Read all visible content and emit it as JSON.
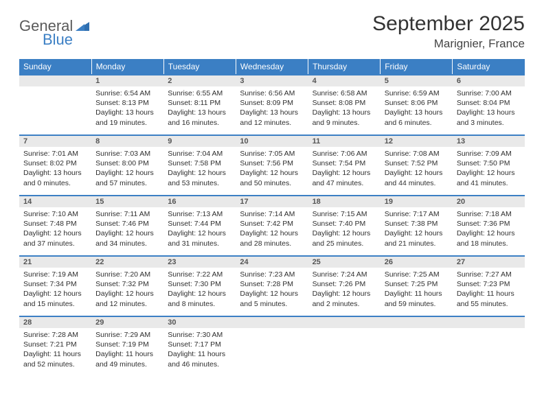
{
  "brand": {
    "name1": "General",
    "name2": "Blue",
    "color1": "#5a5a5a",
    "color2": "#3b7fc4"
  },
  "title": "September 2025",
  "location": "Marignier, France",
  "style": {
    "header_bg": "#3b7fc4",
    "header_fg": "#ffffff",
    "daynum_bg": "#e9e9e9",
    "day_border": "#3b7fc4",
    "text_color": "#333333",
    "title_fontsize": 30,
    "location_fontsize": 17,
    "weekday_fontsize": 12,
    "cell_fontsize": 10.5
  },
  "weekdays": [
    "Sunday",
    "Monday",
    "Tuesday",
    "Wednesday",
    "Thursday",
    "Friday",
    "Saturday"
  ],
  "weeks": [
    [
      null,
      {
        "n": "1",
        "sr": "Sunrise: 6:54 AM",
        "ss": "Sunset: 8:13 PM",
        "d1": "Daylight: 13 hours",
        "d2": "and 19 minutes."
      },
      {
        "n": "2",
        "sr": "Sunrise: 6:55 AM",
        "ss": "Sunset: 8:11 PM",
        "d1": "Daylight: 13 hours",
        "d2": "and 16 minutes."
      },
      {
        "n": "3",
        "sr": "Sunrise: 6:56 AM",
        "ss": "Sunset: 8:09 PM",
        "d1": "Daylight: 13 hours",
        "d2": "and 12 minutes."
      },
      {
        "n": "4",
        "sr": "Sunrise: 6:58 AM",
        "ss": "Sunset: 8:08 PM",
        "d1": "Daylight: 13 hours",
        "d2": "and 9 minutes."
      },
      {
        "n": "5",
        "sr": "Sunrise: 6:59 AM",
        "ss": "Sunset: 8:06 PM",
        "d1": "Daylight: 13 hours",
        "d2": "and 6 minutes."
      },
      {
        "n": "6",
        "sr": "Sunrise: 7:00 AM",
        "ss": "Sunset: 8:04 PM",
        "d1": "Daylight: 13 hours",
        "d2": "and 3 minutes."
      }
    ],
    [
      {
        "n": "7",
        "sr": "Sunrise: 7:01 AM",
        "ss": "Sunset: 8:02 PM",
        "d1": "Daylight: 13 hours",
        "d2": "and 0 minutes."
      },
      {
        "n": "8",
        "sr": "Sunrise: 7:03 AM",
        "ss": "Sunset: 8:00 PM",
        "d1": "Daylight: 12 hours",
        "d2": "and 57 minutes."
      },
      {
        "n": "9",
        "sr": "Sunrise: 7:04 AM",
        "ss": "Sunset: 7:58 PM",
        "d1": "Daylight: 12 hours",
        "d2": "and 53 minutes."
      },
      {
        "n": "10",
        "sr": "Sunrise: 7:05 AM",
        "ss": "Sunset: 7:56 PM",
        "d1": "Daylight: 12 hours",
        "d2": "and 50 minutes."
      },
      {
        "n": "11",
        "sr": "Sunrise: 7:06 AM",
        "ss": "Sunset: 7:54 PM",
        "d1": "Daylight: 12 hours",
        "d2": "and 47 minutes."
      },
      {
        "n": "12",
        "sr": "Sunrise: 7:08 AM",
        "ss": "Sunset: 7:52 PM",
        "d1": "Daylight: 12 hours",
        "d2": "and 44 minutes."
      },
      {
        "n": "13",
        "sr": "Sunrise: 7:09 AM",
        "ss": "Sunset: 7:50 PM",
        "d1": "Daylight: 12 hours",
        "d2": "and 41 minutes."
      }
    ],
    [
      {
        "n": "14",
        "sr": "Sunrise: 7:10 AM",
        "ss": "Sunset: 7:48 PM",
        "d1": "Daylight: 12 hours",
        "d2": "and 37 minutes."
      },
      {
        "n": "15",
        "sr": "Sunrise: 7:11 AM",
        "ss": "Sunset: 7:46 PM",
        "d1": "Daylight: 12 hours",
        "d2": "and 34 minutes."
      },
      {
        "n": "16",
        "sr": "Sunrise: 7:13 AM",
        "ss": "Sunset: 7:44 PM",
        "d1": "Daylight: 12 hours",
        "d2": "and 31 minutes."
      },
      {
        "n": "17",
        "sr": "Sunrise: 7:14 AM",
        "ss": "Sunset: 7:42 PM",
        "d1": "Daylight: 12 hours",
        "d2": "and 28 minutes."
      },
      {
        "n": "18",
        "sr": "Sunrise: 7:15 AM",
        "ss": "Sunset: 7:40 PM",
        "d1": "Daylight: 12 hours",
        "d2": "and 25 minutes."
      },
      {
        "n": "19",
        "sr": "Sunrise: 7:17 AM",
        "ss": "Sunset: 7:38 PM",
        "d1": "Daylight: 12 hours",
        "d2": "and 21 minutes."
      },
      {
        "n": "20",
        "sr": "Sunrise: 7:18 AM",
        "ss": "Sunset: 7:36 PM",
        "d1": "Daylight: 12 hours",
        "d2": "and 18 minutes."
      }
    ],
    [
      {
        "n": "21",
        "sr": "Sunrise: 7:19 AM",
        "ss": "Sunset: 7:34 PM",
        "d1": "Daylight: 12 hours",
        "d2": "and 15 minutes."
      },
      {
        "n": "22",
        "sr": "Sunrise: 7:20 AM",
        "ss": "Sunset: 7:32 PM",
        "d1": "Daylight: 12 hours",
        "d2": "and 12 minutes."
      },
      {
        "n": "23",
        "sr": "Sunrise: 7:22 AM",
        "ss": "Sunset: 7:30 PM",
        "d1": "Daylight: 12 hours",
        "d2": "and 8 minutes."
      },
      {
        "n": "24",
        "sr": "Sunrise: 7:23 AM",
        "ss": "Sunset: 7:28 PM",
        "d1": "Daylight: 12 hours",
        "d2": "and 5 minutes."
      },
      {
        "n": "25",
        "sr": "Sunrise: 7:24 AM",
        "ss": "Sunset: 7:26 PM",
        "d1": "Daylight: 12 hours",
        "d2": "and 2 minutes."
      },
      {
        "n": "26",
        "sr": "Sunrise: 7:25 AM",
        "ss": "Sunset: 7:25 PM",
        "d1": "Daylight: 11 hours",
        "d2": "and 59 minutes."
      },
      {
        "n": "27",
        "sr": "Sunrise: 7:27 AM",
        "ss": "Sunset: 7:23 PM",
        "d1": "Daylight: 11 hours",
        "d2": "and 55 minutes."
      }
    ],
    [
      {
        "n": "28",
        "sr": "Sunrise: 7:28 AM",
        "ss": "Sunset: 7:21 PM",
        "d1": "Daylight: 11 hours",
        "d2": "and 52 minutes."
      },
      {
        "n": "29",
        "sr": "Sunrise: 7:29 AM",
        "ss": "Sunset: 7:19 PM",
        "d1": "Daylight: 11 hours",
        "d2": "and 49 minutes."
      },
      {
        "n": "30",
        "sr": "Sunrise: 7:30 AM",
        "ss": "Sunset: 7:17 PM",
        "d1": "Daylight: 11 hours",
        "d2": "and 46 minutes."
      },
      null,
      null,
      null,
      null
    ]
  ]
}
